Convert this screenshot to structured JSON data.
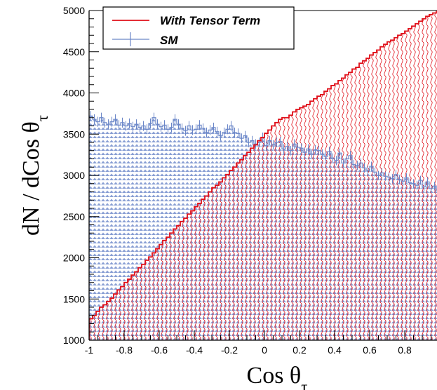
{
  "chart_data": {
    "type": "bar",
    "xlabel": "Cos θτ",
    "ylabel": "dN / dCos θτ",
    "xlim": [
      -1,
      1
    ],
    "ylim": [
      1000,
      5000
    ],
    "x_tick_labels": [
      "-1",
      "-0.8",
      "-0.6",
      "-0.4",
      "-0.2",
      "0",
      "0.2",
      "0.4",
      "0.6",
      "0.8",
      "1"
    ],
    "y_tick_labels": [
      "1000",
      "1500",
      "2000",
      "2500",
      "3000",
      "3500",
      "4000",
      "4500",
      "5000"
    ],
    "legend": {
      "placement": "top-left",
      "entries": [
        "With Tensor Term",
        "SM"
      ]
    },
    "series": [
      {
        "name": "With Tensor Term",
        "color": "#e0101a",
        "values": [
          1260,
          1300,
          1350,
          1400,
          1430,
          1470,
          1510,
          1560,
          1610,
          1650,
          1700,
          1740,
          1790,
          1830,
          1880,
          1920,
          1970,
          2010,
          2060,
          2110,
          2160,
          2210,
          2250,
          2300,
          2350,
          2390,
          2440,
          2480,
          2530,
          2570,
          2620,
          2660,
          2710,
          2750,
          2800,
          2850,
          2880,
          2920,
          2970,
          3010,
          3060,
          3100,
          3150,
          3190,
          3240,
          3280,
          3330,
          3370,
          3420,
          3460,
          3510,
          3550,
          3600,
          3640,
          3680,
          3700,
          3700,
          3730,
          3770,
          3800,
          3820,
          3840,
          3860,
          3900,
          3930,
          3960,
          3980,
          4020,
          4050,
          4090,
          4110,
          4150,
          4180,
          4220,
          4250,
          4290,
          4310,
          4360,
          4390,
          4420,
          4460,
          4490,
          4520,
          4560,
          4590,
          4620,
          4640,
          4670,
          4700,
          4720,
          4750,
          4780,
          4810,
          4840,
          4870,
          4900,
          4930,
          4950,
          4970,
          5000
        ]
      },
      {
        "name": "SM",
        "color": "#6a86c8",
        "values": [
          3720,
          3680,
          3650,
          3700,
          3640,
          3620,
          3650,
          3680,
          3610,
          3640,
          3600,
          3630,
          3590,
          3620,
          3580,
          3600,
          3560,
          3630,
          3700,
          3620,
          3590,
          3610,
          3560,
          3580,
          3680,
          3620,
          3570,
          3540,
          3600,
          3550,
          3560,
          3610,
          3570,
          3520,
          3550,
          3580,
          3530,
          3480,
          3520,
          3560,
          3600,
          3520,
          3510,
          3450,
          3480,
          3400,
          3420,
          3380,
          3400,
          3460,
          3360,
          3420,
          3370,
          3400,
          3410,
          3320,
          3350,
          3300,
          3380,
          3340,
          3330,
          3280,
          3320,
          3260,
          3310,
          3300,
          3260,
          3230,
          3290,
          3210,
          3180,
          3270,
          3150,
          3200,
          3240,
          3130,
          3120,
          3150,
          3090,
          3060,
          3110,
          3040,
          3000,
          3030,
          2990,
          2980,
          2960,
          3010,
          2950,
          2930,
          2970,
          2910,
          2900,
          2880,
          2940,
          2860,
          2920,
          2840,
          2870,
          2820
        ]
      }
    ]
  }
}
